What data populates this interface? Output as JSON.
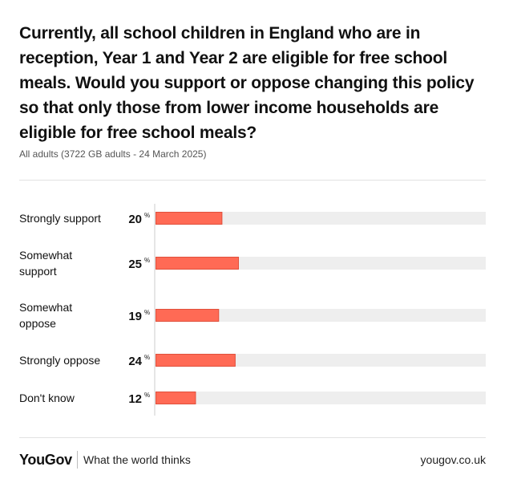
{
  "colors": {
    "bar": "#ff6a55",
    "bar_stroke": "#e0503c",
    "track": "#eeeeee",
    "axis": "#cccccc"
  },
  "chart_data": {
    "type": "bar",
    "orientation": "horizontal",
    "title": "Currently, all school children in England who are in reception, Year 1 and Year 2 are eligible for free school meals. Would you support or oppose changing this policy so that only those from lower income households are eligible for free school meals?",
    "subtitle": "All adults (3722 GB adults - 24 March 2025)",
    "categories": [
      [
        "Strongly support"
      ],
      [
        "Somewhat",
        "support"
      ],
      [
        "Somewhat",
        "oppose"
      ],
      [
        "Strongly oppose"
      ],
      [
        "Don't know"
      ]
    ],
    "values": [
      20,
      25,
      19,
      24,
      12
    ],
    "unit": "%",
    "xlim": [
      0,
      100
    ]
  },
  "footer": {
    "logo": "YouGov",
    "tagline": "What the world thinks",
    "url": "yougov.co.uk"
  }
}
